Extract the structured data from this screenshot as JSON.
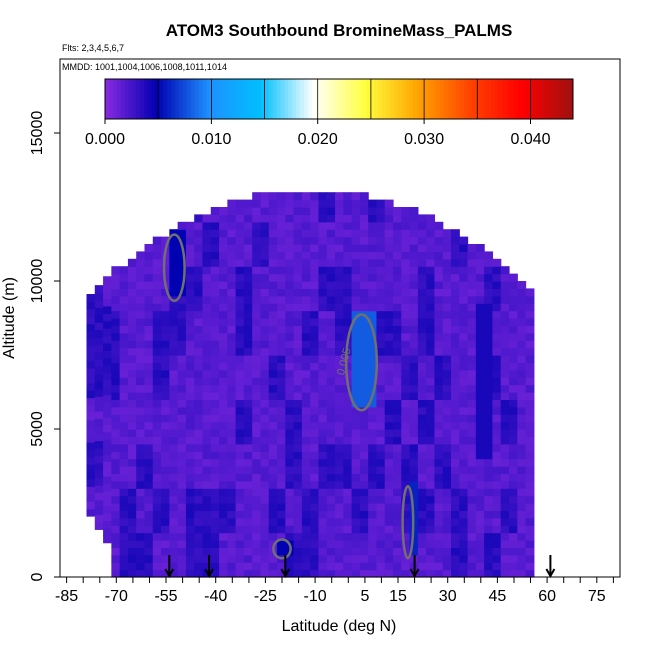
{
  "chart_data": {
    "type": "heatmap",
    "title": "ATOM3 Southbound BromineMass_PALMS",
    "flights_label": "Flts: 2,3,4,5,6,7",
    "mmdd_label": "MMDD: 1001,1004,1006,1008,1011,1014",
    "xlabel": "Latitude (deg N)",
    "ylabel": "Altitude (m)",
    "xlim": [
      -87,
      82
    ],
    "ylim": [
      0,
      17500
    ],
    "x_ticks": [
      -85,
      -70,
      -55,
      -40,
      -25,
      -10,
      5,
      15,
      30,
      45,
      60,
      75
    ],
    "x_minor_step": 5,
    "y_ticks": [
      0,
      5000,
      10000,
      15000
    ],
    "colorbar": {
      "min": 0.0,
      "max": 0.044,
      "ticks": [
        0.0,
        0.01,
        0.02,
        0.03,
        0.04
      ],
      "tick_labels": [
        "0.000",
        "0.010",
        "0.020",
        "0.030",
        "0.040"
      ],
      "boundaries_step": 0.005,
      "colors": [
        "#8a2be2",
        "#0000b0",
        "#1e90ff",
        "#00bfff",
        "#ffffff",
        "#ffff40",
        "#ffa500",
        "#ff4500",
        "#ff0000",
        "#a01010"
      ]
    },
    "contour_level": 0.005,
    "contour_label": "0.005",
    "flight_arrows_lat": [
      -54,
      -42,
      -19,
      20,
      61
    ],
    "data_extent": {
      "lat_min": -79,
      "lat_max": 56,
      "alt_max": 13000
    },
    "enhanced_regions": [
      {
        "lat": [
          0,
          8
        ],
        "alt": [
          5700,
          8800
        ],
        "value": 0.008
      },
      {
        "lat": [
          17,
          19
        ],
        "alt": [
          700,
          3000
        ],
        "value": 0.006
      },
      {
        "lat": [
          -55,
          -50
        ],
        "alt": [
          9400,
          11500
        ],
        "value": 0.005
      },
      {
        "lat": [
          -22,
          -18
        ],
        "alt": [
          700,
          1200
        ],
        "value": 0.005
      },
      {
        "lat": [
          38,
          43
        ],
        "alt": [
          4000,
          9000
        ],
        "value": 0.004
      }
    ]
  }
}
